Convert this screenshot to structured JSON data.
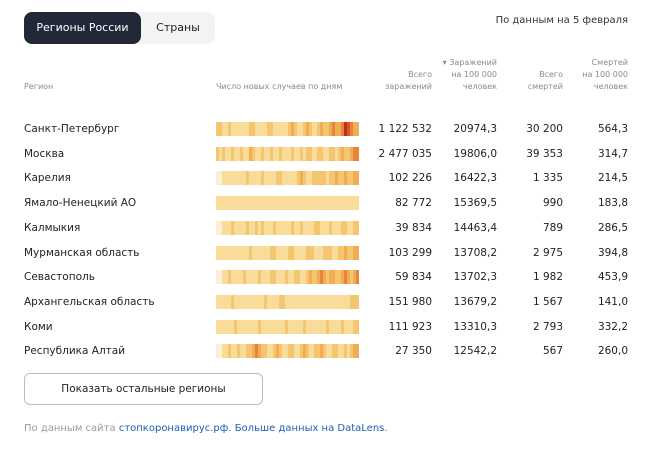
{
  "tabs": [
    {
      "label": "Регионы России",
      "active": true
    },
    {
      "label": "Страны",
      "active": false
    }
  ],
  "as_of": "По данным на 5 февраля",
  "headers": {
    "region": "Регион",
    "trend": "Число новых случаев по дням",
    "total_l1": "Всего",
    "total_l2": "заражений",
    "per100k_l1": "▾ Заражений",
    "per100k_l2": "на 100 000",
    "per100k_l3": "человек",
    "deaths_l1": "Всего",
    "deaths_l2": "смертей",
    "deaths100k_l1": "Смертей",
    "deaths100k_l2": "на 100 000",
    "deaths100k_l3": "человек"
  },
  "rows": [
    {
      "region": "Санкт-Петербург",
      "total": "1 122 532",
      "per100k": "20974,3",
      "deaths": "30 200",
      "deaths100k": "564,3",
      "intensity": [
        2,
        2,
        1,
        1,
        2,
        1,
        1,
        1,
        1,
        1,
        1,
        2,
        2,
        1,
        1,
        1,
        1,
        2,
        2,
        1,
        1,
        1,
        1,
        1,
        2,
        3,
        2,
        1,
        1,
        2,
        3,
        2,
        1,
        1,
        2,
        3,
        2,
        2,
        3,
        4,
        3,
        3,
        4,
        6,
        5,
        4,
        3,
        3
      ]
    },
    {
      "region": "Москва",
      "total": "2 477 035",
      "per100k": "19806,0",
      "deaths": "39 353",
      "deaths100k": "314,7",
      "intensity": [
        2,
        1,
        2,
        1,
        1,
        2,
        1,
        1,
        2,
        1,
        1,
        3,
        2,
        1,
        1,
        2,
        1,
        1,
        2,
        1,
        1,
        2,
        1,
        1,
        1,
        2,
        1,
        1,
        2,
        1,
        2,
        2,
        1,
        1,
        2,
        2,
        1,
        1,
        2,
        2,
        1,
        2,
        3,
        2,
        2,
        3,
        4,
        4
      ]
    },
    {
      "region": "Карелия",
      "total": "102 226",
      "per100k": "16422,3",
      "deaths": "1 335",
      "deaths100k": "214,5",
      "intensity": [
        0,
        0,
        1,
        1,
        1,
        1,
        1,
        1,
        1,
        1,
        2,
        1,
        1,
        1,
        1,
        2,
        1,
        1,
        1,
        1,
        2,
        2,
        1,
        1,
        1,
        1,
        1,
        2,
        3,
        2,
        1,
        1,
        2,
        2,
        2,
        2,
        2,
        1,
        2,
        2,
        3,
        2,
        2,
        3,
        2,
        2,
        3,
        3
      ]
    },
    {
      "region": "Ямало-Ненецкий АО",
      "total": "82 772",
      "per100k": "15369,5",
      "deaths": "990",
      "deaths100k": "183,8",
      "intensity": [
        1,
        1,
        1,
        1,
        1,
        1,
        1,
        1,
        1,
        1,
        1,
        1,
        1,
        1,
        1,
        1,
        1,
        1,
        1,
        1,
        1,
        1,
        1,
        1,
        1,
        1,
        1,
        1,
        1,
        1,
        1,
        1,
        1,
        1,
        1,
        1,
        1,
        1,
        1,
        1,
        1,
        1,
        1,
        1,
        1,
        1,
        1,
        1
      ]
    },
    {
      "region": "Калмыкия",
      "total": "39 834",
      "per100k": "14463,4",
      "deaths": "789",
      "deaths100k": "286,5",
      "intensity": [
        0,
        0,
        1,
        1,
        1,
        2,
        1,
        1,
        1,
        1,
        2,
        1,
        1,
        2,
        1,
        2,
        1,
        1,
        1,
        2,
        1,
        1,
        1,
        1,
        1,
        2,
        1,
        1,
        2,
        1,
        1,
        1,
        1,
        2,
        2,
        1,
        1,
        1,
        2,
        1,
        1,
        1,
        2,
        2,
        1,
        1,
        2,
        2
      ]
    },
    {
      "region": "Мурманская область",
      "total": "103 299",
      "per100k": "13708,2",
      "deaths": "2 975",
      "deaths100k": "394,8",
      "intensity": [
        1,
        1,
        1,
        1,
        1,
        1,
        1,
        1,
        1,
        1,
        1,
        2,
        1,
        1,
        1,
        1,
        1,
        1,
        2,
        2,
        1,
        1,
        1,
        1,
        2,
        2,
        1,
        1,
        1,
        1,
        2,
        2,
        2,
        1,
        1,
        1,
        2,
        2,
        2,
        1,
        1,
        2,
        2,
        3,
        2,
        2,
        3,
        3
      ]
    },
    {
      "region": "Севастополь",
      "total": "59 834",
      "per100k": "13702,3",
      "deaths": "1 982",
      "deaths100k": "453,9",
      "intensity": [
        0,
        0,
        1,
        1,
        2,
        1,
        1,
        1,
        1,
        2,
        1,
        1,
        1,
        1,
        2,
        1,
        1,
        1,
        2,
        2,
        1,
        1,
        1,
        2,
        1,
        1,
        2,
        2,
        1,
        1,
        2,
        3,
        2,
        2,
        3,
        4,
        3,
        2,
        3,
        3,
        2,
        2,
        3,
        4,
        3,
        2,
        3,
        4
      ]
    },
    {
      "region": "Архангельская область",
      "total": "151 980",
      "per100k": "13679,2",
      "deaths": "1 567",
      "deaths100k": "141,0",
      "intensity": [
        1,
        1,
        1,
        1,
        1,
        2,
        1,
        1,
        1,
        1,
        1,
        1,
        1,
        1,
        1,
        1,
        2,
        1,
        1,
        1,
        1,
        2,
        2,
        1,
        1,
        1,
        1,
        1,
        1,
        1,
        1,
        1,
        1,
        1,
        1,
        1,
        1,
        1,
        1,
        1,
        1,
        1,
        1,
        1,
        1,
        2,
        2,
        2
      ]
    },
    {
      "region": "Коми",
      "total": "111 923",
      "per100k": "13310,3",
      "deaths": "2 793",
      "deaths100k": "332,2",
      "intensity": [
        1,
        1,
        1,
        1,
        1,
        1,
        2,
        1,
        1,
        1,
        1,
        1,
        1,
        1,
        2,
        1,
        1,
        1,
        1,
        1,
        1,
        1,
        1,
        2,
        1,
        1,
        1,
        1,
        1,
        2,
        1,
        1,
        1,
        1,
        1,
        1,
        1,
        2,
        1,
        1,
        1,
        1,
        2,
        1,
        1,
        1,
        2,
        2
      ]
    },
    {
      "region": "Республика Алтай",
      "total": "27 350",
      "per100k": "12542,2",
      "deaths": "567",
      "deaths100k": "260,0",
      "intensity": [
        0,
        0,
        1,
        1,
        2,
        1,
        1,
        2,
        1,
        1,
        2,
        2,
        3,
        4,
        3,
        2,
        2,
        1,
        1,
        2,
        3,
        2,
        1,
        1,
        2,
        2,
        1,
        1,
        2,
        3,
        2,
        1,
        1,
        2,
        2,
        3,
        2,
        1,
        1,
        2,
        2,
        1,
        1,
        2,
        1,
        2,
        3,
        3
      ]
    }
  ],
  "show_more_label": "Показать остальные регионы",
  "footer": {
    "prefix": "По данным сайта",
    "site_link": "стопкоронавирус.рф.",
    "more_link": "Больше данных на DataLens."
  },
  "colors": {
    "tab_active_bg": "#232838",
    "link": "#1a5fb4",
    "heat_scale": [
      "#fbefd9",
      "#f9dc9a",
      "#f5c670",
      "#f0ad55",
      "#e8853a",
      "#d9542a",
      "#b8321c"
    ]
  }
}
